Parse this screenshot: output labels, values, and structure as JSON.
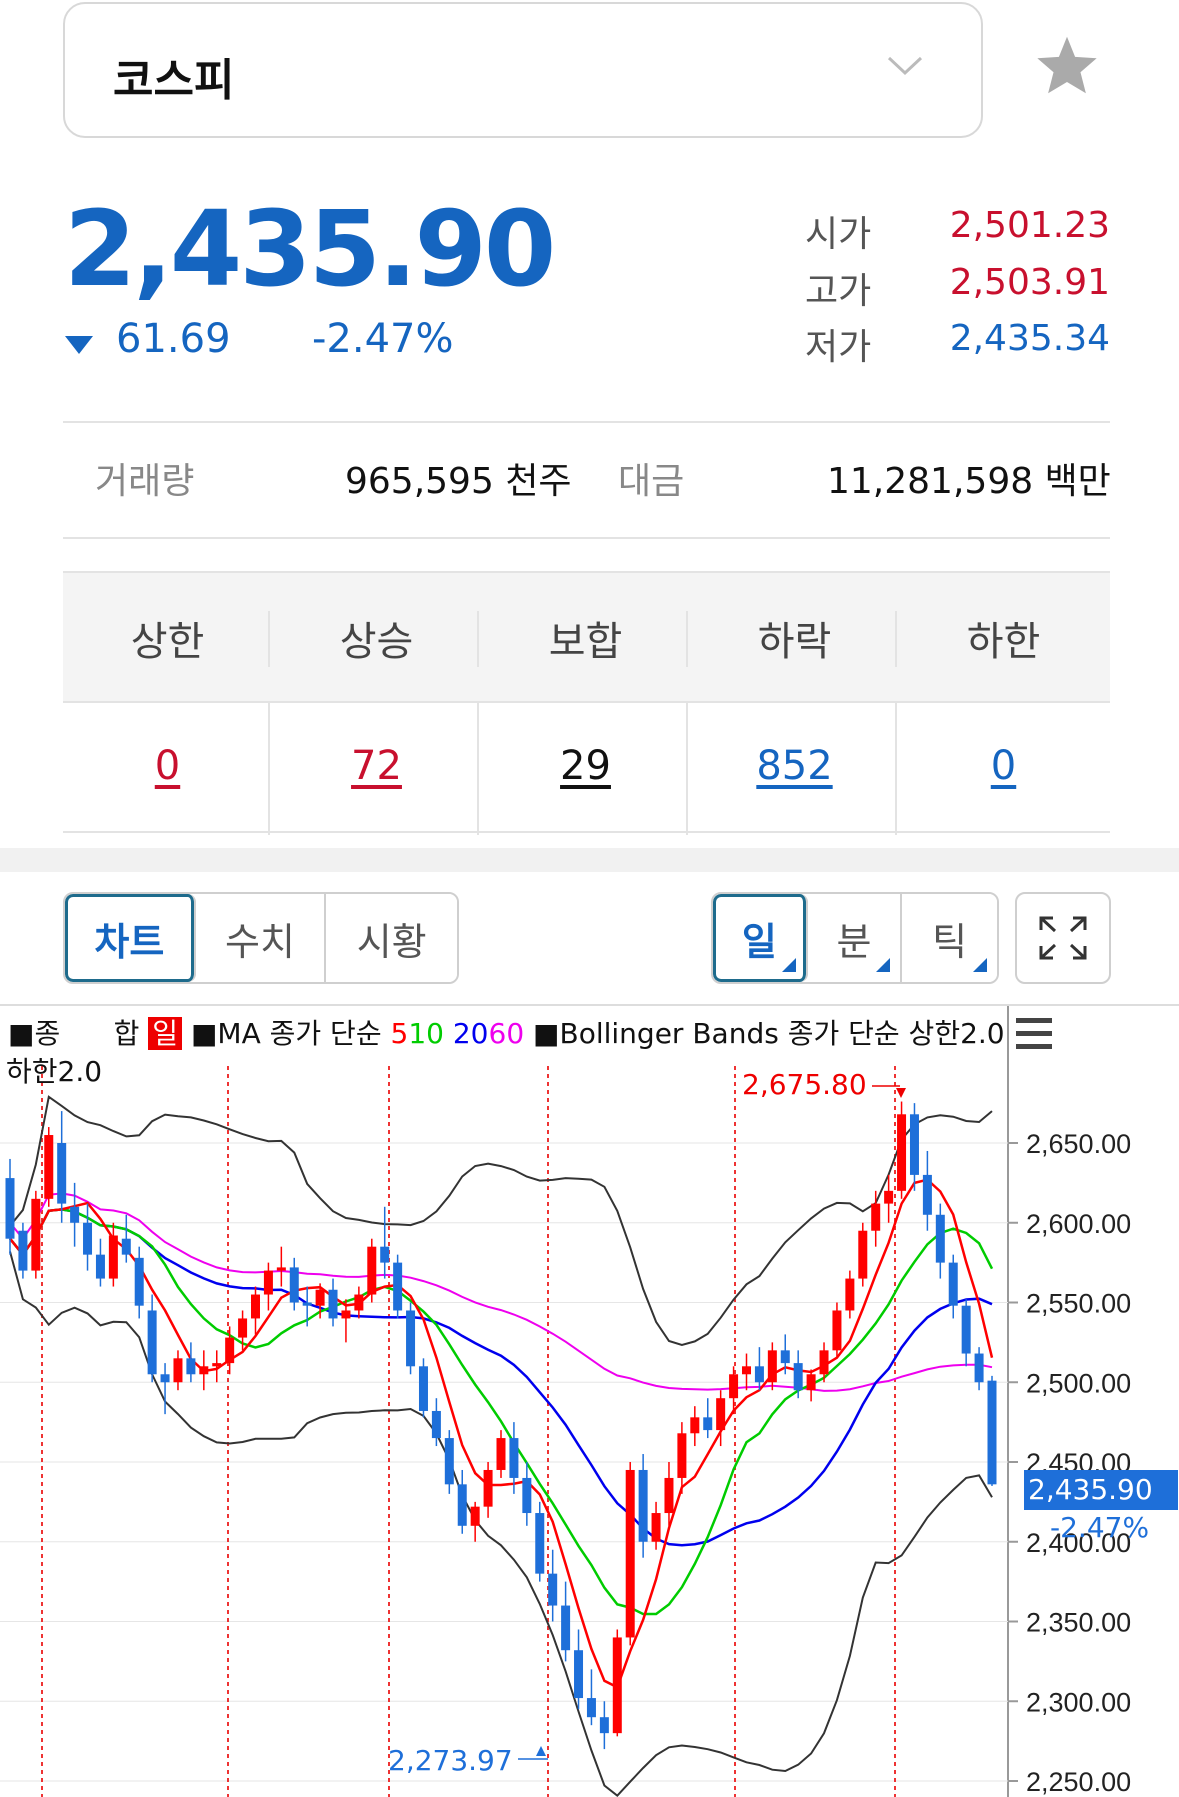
{
  "index": {
    "name": "코스피",
    "price": "2,435.90",
    "change": "61.69",
    "change_pct": "-2.47%"
  },
  "ohl": [
    {
      "label": "시가",
      "value": "2,501.23",
      "color": "red"
    },
    {
      "label": "고가",
      "value": "2,503.91",
      "color": "red"
    },
    {
      "label": "저가",
      "value": "2,435.34",
      "color": "blue"
    }
  ],
  "volume": {
    "label": "거래량",
    "value": "965,595 천주",
    "amount_label": "대금",
    "amount_value": "11,281,598 백만"
  },
  "breadth": {
    "headers": [
      "상한",
      "상승",
      "보합",
      "하락",
      "하한"
    ],
    "values": [
      "0",
      "72",
      "29",
      "852",
      "0"
    ],
    "colors": [
      "#c8102e",
      "#c8102e",
      "#111111",
      "#1565c0",
      "#1565c0"
    ]
  },
  "tabs": {
    "views": [
      "차트",
      "수치",
      "시황"
    ],
    "periods": [
      "일",
      "분",
      "틱"
    ]
  },
  "chart_legend": {
    "series_prefix": "■종",
    "series_name": "합",
    "period": "일",
    "ma": "■MA 종가 단순",
    "ma_periods": [
      "5",
      "10",
      "20",
      "60"
    ],
    "ma_colors": [
      "#ff0000",
      "#00cc00",
      "#0000ee",
      "#ee00ee"
    ],
    "bb": "■Bollinger Bands 종가 단순 상한2.0",
    "bb2": "하한2.0"
  },
  "chart_data": {
    "type": "candlestick",
    "y_ticks": [
      "2,650.00",
      "2,600.00",
      "2,550.00",
      "2,500.00",
      "2,450.00",
      "2,400.00",
      "2,350.00",
      "2,300.00",
      "2,250.00"
    ],
    "ylim": [
      2240,
      2690
    ],
    "max_label": "2,675.80",
    "min_label": "2,273.97",
    "last_price": "2,435.90",
    "last_change": "-2.47%",
    "ohlc": [
      [
        2628,
        2640,
        2580,
        2590
      ],
      [
        2595,
        2600,
        2565,
        2570
      ],
      [
        2570,
        2620,
        2565,
        2615
      ],
      [
        2615,
        2660,
        2610,
        2655
      ],
      [
        2650,
        2670,
        2600,
        2612
      ],
      [
        2610,
        2625,
        2585,
        2600
      ],
      [
        2600,
        2612,
        2570,
        2580
      ],
      [
        2580,
        2590,
        2560,
        2565
      ],
      [
        2565,
        2600,
        2560,
        2592
      ],
      [
        2590,
        2605,
        2575,
        2580
      ],
      [
        2578,
        2585,
        2540,
        2548
      ],
      [
        2545,
        2555,
        2500,
        2505
      ],
      [
        2505,
        2512,
        2480,
        2500
      ],
      [
        2500,
        2520,
        2495,
        2515
      ],
      [
        2515,
        2525,
        2500,
        2505
      ],
      [
        2505,
        2520,
        2495,
        2510
      ],
      [
        2510,
        2520,
        2500,
        2512
      ],
      [
        2512,
        2535,
        2505,
        2528
      ],
      [
        2528,
        2545,
        2520,
        2540
      ],
      [
        2540,
        2560,
        2530,
        2555
      ],
      [
        2555,
        2575,
        2545,
        2570
      ],
      [
        2570,
        2585,
        2560,
        2572
      ],
      [
        2572,
        2578,
        2545,
        2550
      ],
      [
        2550,
        2560,
        2535,
        2548
      ],
      [
        2548,
        2562,
        2540,
        2558
      ],
      [
        2558,
        2565,
        2535,
        2540
      ],
      [
        2540,
        2552,
        2525,
        2545
      ],
      [
        2545,
        2560,
        2540,
        2555
      ],
      [
        2555,
        2590,
        2550,
        2585
      ],
      [
        2585,
        2610,
        2565,
        2575
      ],
      [
        2575,
        2580,
        2540,
        2545
      ],
      [
        2545,
        2550,
        2505,
        2510
      ],
      [
        2510,
        2515,
        2478,
        2482
      ],
      [
        2482,
        2490,
        2460,
        2465
      ],
      [
        2465,
        2470,
        2430,
        2436
      ],
      [
        2436,
        2445,
        2405,
        2410
      ],
      [
        2410,
        2425,
        2400,
        2422
      ],
      [
        2422,
        2450,
        2415,
        2445
      ],
      [
        2445,
        2470,
        2440,
        2465
      ],
      [
        2465,
        2475,
        2430,
        2440
      ],
      [
        2440,
        2450,
        2410,
        2418
      ],
      [
        2418,
        2425,
        2375,
        2380
      ],
      [
        2380,
        2395,
        2350,
        2360
      ],
      [
        2360,
        2375,
        2325,
        2332
      ],
      [
        2332,
        2345,
        2295,
        2302
      ],
      [
        2302,
        2320,
        2285,
        2290
      ],
      [
        2290,
        2300,
        2270,
        2280
      ],
      [
        2280,
        2345,
        2278,
        2340
      ],
      [
        2340,
        2450,
        2335,
        2445
      ],
      [
        2445,
        2455,
        2390,
        2400
      ],
      [
        2400,
        2425,
        2395,
        2418
      ],
      [
        2418,
        2450,
        2410,
        2440
      ],
      [
        2440,
        2475,
        2430,
        2468
      ],
      [
        2468,
        2485,
        2460,
        2478
      ],
      [
        2478,
        2490,
        2465,
        2470
      ],
      [
        2470,
        2495,
        2460,
        2490
      ],
      [
        2490,
        2510,
        2480,
        2505
      ],
      [
        2505,
        2518,
        2495,
        2510
      ],
      [
        2510,
        2522,
        2495,
        2500
      ],
      [
        2500,
        2525,
        2495,
        2520
      ],
      [
        2520,
        2530,
        2505,
        2512
      ],
      [
        2512,
        2520,
        2490,
        2495
      ],
      [
        2495,
        2508,
        2488,
        2505
      ],
      [
        2505,
        2525,
        2500,
        2520
      ],
      [
        2520,
        2550,
        2515,
        2545
      ],
      [
        2545,
        2570,
        2540,
        2565
      ],
      [
        2565,
        2600,
        2560,
        2595
      ],
      [
        2595,
        2620,
        2585,
        2612
      ],
      [
        2612,
        2630,
        2600,
        2620
      ],
      [
        2620,
        2676,
        2615,
        2668
      ],
      [
        2668,
        2675,
        2620,
        2630
      ],
      [
        2630,
        2645,
        2595,
        2605
      ],
      [
        2605,
        2612,
        2565,
        2575
      ],
      [
        2575,
        2580,
        2540,
        2548
      ],
      [
        2548,
        2552,
        2510,
        2518
      ],
      [
        2518,
        2522,
        2495,
        2500
      ],
      [
        2501,
        2504,
        2435,
        2436
      ]
    ],
    "ma5_color": "#ff0000",
    "ma10_color": "#00cc00",
    "ma20_color": "#0000ee",
    "ma60_color": "#ee00ee",
    "bb_color": "#333333",
    "up_color": "#ff0000",
    "down_color": "#1e6fd9"
  }
}
